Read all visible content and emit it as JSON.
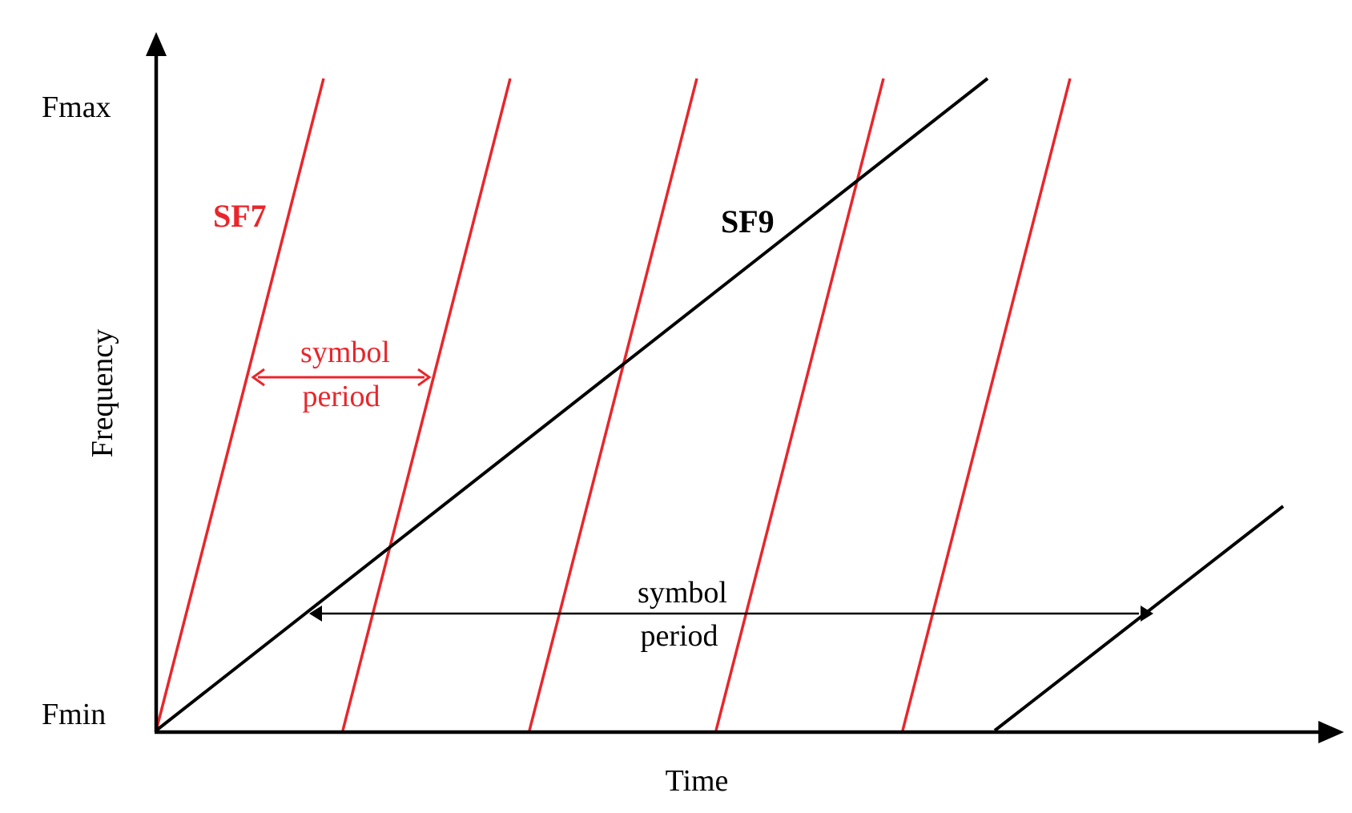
{
  "axes": {
    "x_label": "Time",
    "y_label": "Frequency",
    "y_top_label": "Fmax",
    "y_bottom_label": "Fmin"
  },
  "sf7": {
    "label": "SF7",
    "color": "#e8262b",
    "period_label_line1": "symbol",
    "period_label_line2": "period",
    "chirp_count": 5
  },
  "sf9": {
    "label": "SF9",
    "color": "#000000",
    "period_label_line1": "symbol",
    "period_label_line2": "period",
    "chirp_count": 2
  }
}
